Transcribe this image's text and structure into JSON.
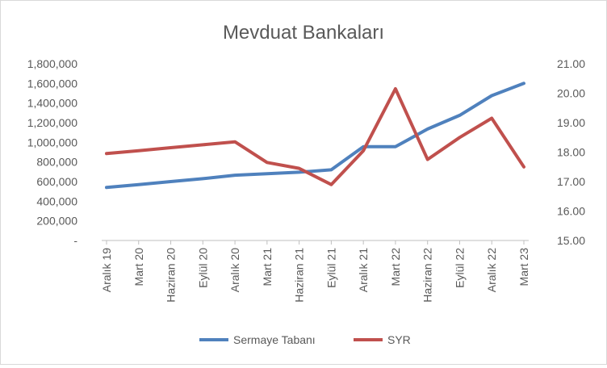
{
  "chart_data": {
    "type": "line",
    "title": "Mevduat Bankaları",
    "categories": [
      "Aralık 19",
      "Mart 20",
      "Haziran 20",
      "Eylül 20",
      "Aralık 20",
      "Mart 21",
      "Haziran 21",
      "Eylül 21",
      "Aralık 21",
      "Mart 22",
      "Haziran 22",
      "Eylül 22",
      "Aralık 22",
      "Mart 23"
    ],
    "left_axis": {
      "ylim": [
        0,
        1800000
      ],
      "ticks": [
        0,
        200000,
        400000,
        600000,
        800000,
        1000000,
        1200000,
        1400000,
        1600000,
        1800000
      ],
      "tick_labels": [
        "-",
        "200,000",
        "400,000",
        "600,000",
        "800,000",
        "1,000,000",
        "1,200,000",
        "1,400,000",
        "1,600,000",
        "1,800,000"
      ]
    },
    "right_axis": {
      "ylim": [
        15,
        21
      ],
      "ticks": [
        15,
        16,
        17,
        18,
        19,
        20,
        21
      ],
      "tick_labels": [
        "15.00",
        "16.00",
        "17.00",
        "18.00",
        "19.00",
        "20.00",
        "21.00"
      ]
    },
    "series": [
      {
        "name": "Sermaye Tabanı",
        "axis": "left",
        "color": "#4f81bd",
        "values": [
          540000,
          570000,
          600000,
          630000,
          665000,
          680000,
          695000,
          720000,
          955000,
          955000,
          1135000,
          1275000,
          1475000,
          1600000
        ]
      },
      {
        "name": "SYR",
        "axis": "right",
        "color": "#c0504d",
        "values": [
          17.95,
          18.05,
          18.15,
          18.25,
          18.35,
          17.65,
          17.45,
          16.9,
          18.05,
          20.15,
          17.75,
          18.5,
          19.15,
          17.5
        ]
      }
    ],
    "grid": false,
    "legend_position": "bottom"
  }
}
